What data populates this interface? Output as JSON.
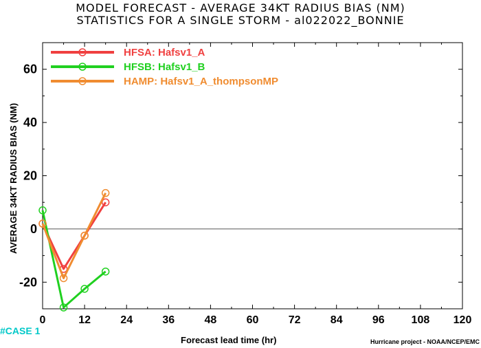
{
  "title_line1": "MODEL FORECAST - AVERAGE 34KT RADIUS BIAS (NM)",
  "title_line2": "STATISTICS FOR A SINGLE STORM - al022022_BONNIE",
  "case_label": "#CASE  1",
  "credit": "Hurricane project - NOAA/NCEP/EMC",
  "chart_data": {
    "type": "line",
    "xlabel": "Forecast lead time (hr)",
    "ylabel": "AVERAGE 34KT RADIUS BIAS (NM)",
    "xlim": [
      0,
      120
    ],
    "ylim": [
      -30,
      70
    ],
    "x_ticks": [
      0,
      12,
      24,
      36,
      48,
      60,
      72,
      84,
      96,
      108,
      120
    ],
    "y_ticks": [
      -20,
      0,
      20,
      40,
      60
    ],
    "grid": false,
    "zero_line": true,
    "legend_position": "top-left",
    "series": [
      {
        "name": "HFSA: Hafsv1_A",
        "color": "#f04040",
        "x": [
          0,
          6,
          12,
          18
        ],
        "values": [
          2,
          -15,
          -2.5,
          10
        ]
      },
      {
        "name": "HFSB: Hafsv1_B",
        "color": "#20d020",
        "x": [
          0,
          6,
          12,
          18
        ],
        "values": [
          7,
          -29.5,
          -22.5,
          -16
        ]
      },
      {
        "name": "HAMP: Hafsv1_A_thompsonMP",
        "color": "#f08c30",
        "x": [
          0,
          6,
          12,
          18
        ],
        "values": [
          2,
          -18.5,
          -2.5,
          13.5
        ]
      }
    ]
  }
}
